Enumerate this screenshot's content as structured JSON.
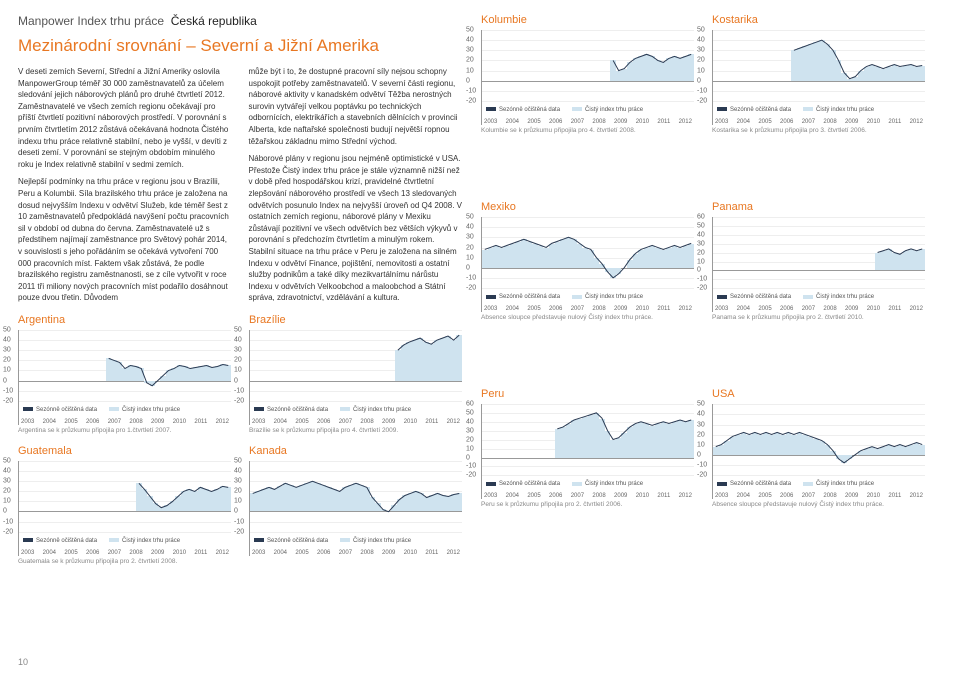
{
  "breadcrumb": {
    "section": "Manpower Index trhu práce",
    "country": "Česká republika"
  },
  "heading": "Mezinárodní srovnání – Severní a Jižní Amerika",
  "paragraph1": "V deseti zemích Severní, Střední a Jižní Ameriky oslovila ManpowerGroup téměř 30 000 zaměstnavatelů za účelem sledování jejich náborových plánů pro druhé čtvrtletí 2012. Zaměstnavatelé ve všech zemích regionu očekávají pro příští čtvrtletí pozitivní náborových prostředí. V porovnání s prvním čtvrtletím 2012 zůstává očekávaná hodnota Čistého indexu trhu práce relativně stabilní, nebo je vyšší, v devíti z deseti zemí. V porovnání se stejným obdobím minulého roku je Index relativně stabilní v sedmi zemích.",
  "paragraph2": "Nejlepší podmínky na trhu práce v regionu jsou v Brazílii, Peru a Kolumbii. Síla brazilského trhu práce je založena na dosud nejvyšším Indexu v odvětví Služeb, kde téměř šest z 10 zaměstnavatelů předpokládá navýšení počtu pracovních sil v období od dubna do června. Zaměstnavatelé už s předstihem najímají zaměstnance pro Světový pohár 2014, v souvislosti s jeho pořádáním se očekává vytvoření 700 000 pracovních míst. Faktem však zůstává, že podle brazilského registru zaměstnanosti, se z cíle vytvořit v roce 2011 tři miliony nových pracovních míst podařilo dosáhnout pouze dvou třetin. Důvodem",
  "paragraph3": "může být i to, že dostupné pracovní síly nejsou schopny uspokojit potřeby zaměstnavatelů. V severní části regionu, náborové aktivity v kanadském odvětví Těžba nerostných surovin vytvářejí velkou poptávku po technických odbornících, elektrikářích a stavebních dělnících v provincii Alberta, kde naftařské společnosti budují největší ropnou těžařskou základnu mimo Střední východ.",
  "paragraph4": "Náborové plány v regionu jsou nejméně optimistické v USA. Přestože Čistý index trhu práce je stále významně nižší než v době před hospodářskou krizí, pravidelné čtvrtletní zlepšování náborového prostředí ve všech 13 sledovaných odvětvích posunulo Index na nejvyšší úroveň od Q4 2008. V ostatních zemích regionu, náborové plány v Mexiku zůstávají pozitivní ve všech odvětvích bez větších výkyvů v porovnání s předchozím čtvrtletím a minulým rokem. Stabilní situace na trhu práce v Peru je založena na silném Indexu v odvětví Finance, pojištění, nemovitosti a ostatní služby podnikům a také díky mezikvartálnímu nárůstu Indexu v odvětvích Velkoobchod a maloobchod a Státní správa, zdravotnictví, vzdělávání a kultura.",
  "legend_labels": {
    "seasonal": "Sezónně očištěná data",
    "net": "Čistý index trhu práce"
  },
  "colors": {
    "accent": "#e87722",
    "bar": "#cfe3ef",
    "line": "#2a3a52",
    "grid": "#eeeeee",
    "axis": "#999999"
  },
  "axis": {
    "min": -20,
    "max": 50,
    "step": 10
  },
  "x_ticks": [
    "2003",
    "2004",
    "2005",
    "2006",
    "2007",
    "2008",
    "2009",
    "2010",
    "2011",
    "2012"
  ],
  "charts_left": [
    {
      "title": "Argentina",
      "footnote": "Argentina se k průzkumu připojila pro 1.čtvrtletí 2007.",
      "values": [
        null,
        null,
        null,
        null,
        null,
        null,
        null,
        null,
        null,
        null,
        null,
        null,
        null,
        null,
        null,
        null,
        22,
        20,
        18,
        12,
        15,
        14,
        12,
        -2,
        -5,
        0,
        5,
        10,
        12,
        15,
        14,
        12,
        13,
        14,
        15,
        13,
        14,
        16,
        15
      ],
      "line": [
        22,
        20,
        18,
        12,
        15,
        14,
        12,
        -2,
        -5,
        0,
        5,
        10,
        12,
        15,
        14,
        12,
        13,
        14,
        15,
        13,
        14,
        16,
        15
      ]
    },
    {
      "title": "Brazílie",
      "footnote": "Brazílie se k průzkumu připojila pro 4. čtvrtletí 2009.",
      "values": [
        null,
        null,
        null,
        null,
        null,
        null,
        null,
        null,
        null,
        null,
        null,
        null,
        null,
        null,
        null,
        null,
        null,
        null,
        null,
        null,
        null,
        null,
        null,
        null,
        null,
        null,
        30,
        35,
        38,
        40,
        42,
        38,
        36,
        40,
        42,
        44,
        40,
        45
      ],
      "line": [
        30,
        35,
        38,
        40,
        42,
        38,
        36,
        40,
        42,
        44,
        40,
        45
      ]
    },
    {
      "title": "Guatemala",
      "footnote": "Guatemala se k průzkumu připojila pro 2. čtvrtletí 2008.",
      "values": [
        null,
        null,
        null,
        null,
        null,
        null,
        null,
        null,
        null,
        null,
        null,
        null,
        null,
        null,
        null,
        null,
        null,
        null,
        null,
        null,
        null,
        28,
        22,
        15,
        8,
        4,
        6,
        10,
        15,
        20,
        22,
        20,
        24,
        22,
        20,
        22,
        25,
        24
      ],
      "line": [
        28,
        22,
        15,
        8,
        4,
        6,
        10,
        15,
        20,
        22,
        20,
        24,
        22,
        20,
        22,
        25,
        24
      ]
    },
    {
      "title": "Kanada",
      "footnote": "",
      "values": [
        18,
        20,
        22,
        24,
        22,
        25,
        28,
        26,
        24,
        26,
        28,
        30,
        28,
        26,
        24,
        22,
        20,
        24,
        26,
        28,
        26,
        24,
        14,
        8,
        2,
        0,
        6,
        12,
        16,
        18,
        20,
        18,
        14,
        16,
        18,
        16,
        15,
        17,
        18
      ],
      "line": [
        18,
        20,
        22,
        24,
        22,
        25,
        28,
        26,
        24,
        26,
        28,
        30,
        28,
        26,
        24,
        22,
        20,
        24,
        26,
        28,
        26,
        24,
        14,
        8,
        2,
        0,
        6,
        12,
        16,
        18,
        20,
        18,
        14,
        16,
        18,
        16,
        15,
        17,
        18
      ]
    }
  ],
  "charts_right": [
    {
      "title": "Kolumbie",
      "footnote": "Kolumbie se k průzkumu připojila pro 4. čtvrtletí 2008.",
      "values": [
        null,
        null,
        null,
        null,
        null,
        null,
        null,
        null,
        null,
        null,
        null,
        null,
        null,
        null,
        null,
        null,
        null,
        null,
        null,
        null,
        null,
        null,
        null,
        20,
        10,
        12,
        18,
        22,
        24,
        26,
        24,
        20,
        18,
        22,
        24,
        22,
        24,
        26
      ],
      "line": [
        20,
        10,
        12,
        18,
        22,
        24,
        26,
        24,
        20,
        18,
        22,
        24,
        22,
        24,
        26
      ]
    },
    {
      "title": "Kostarika",
      "footnote": "Kostarika se k průzkumu připojila pro 3. čtvrtletí 2006.",
      "values": [
        null,
        null,
        null,
        null,
        null,
        null,
        null,
        null,
        null,
        null,
        null,
        null,
        null,
        null,
        30,
        32,
        34,
        36,
        38,
        40,
        36,
        30,
        20,
        8,
        2,
        4,
        10,
        14,
        16,
        14,
        12,
        14,
        16,
        14,
        15,
        16,
        14,
        15
      ],
      "line": [
        30,
        32,
        34,
        36,
        38,
        40,
        36,
        30,
        20,
        8,
        2,
        4,
        10,
        14,
        16,
        14,
        12,
        14,
        16,
        14,
        15,
        16,
        14,
        15
      ]
    },
    {
      "title": "Mexiko",
      "footnote": "Absence sloupce představuje nulový Čistý index trhu práce.",
      "values": [
        18,
        20,
        22,
        20,
        22,
        24,
        26,
        28,
        26,
        24,
        22,
        20,
        24,
        26,
        28,
        30,
        28,
        24,
        20,
        18,
        10,
        4,
        -4,
        -10,
        -6,
        0,
        8,
        14,
        18,
        20,
        22,
        20,
        18,
        20,
        22,
        20,
        22,
        24
      ],
      "line": [
        18,
        20,
        22,
        20,
        22,
        24,
        26,
        28,
        26,
        24,
        22,
        20,
        24,
        26,
        28,
        30,
        28,
        24,
        20,
        18,
        10,
        4,
        -4,
        -10,
        -6,
        0,
        8,
        14,
        18,
        20,
        22,
        20,
        18,
        20,
        22,
        20,
        22,
        24
      ]
    },
    {
      "title": "Panama",
      "footnote": "Panama se k průzkumu připojila pro 2. čtvrtletí 2010.",
      "axis_max": 60,
      "values": [
        null,
        null,
        null,
        null,
        null,
        null,
        null,
        null,
        null,
        null,
        null,
        null,
        null,
        null,
        null,
        null,
        null,
        null,
        null,
        null,
        null,
        null,
        null,
        null,
        null,
        null,
        null,
        null,
        null,
        20,
        22,
        24,
        20,
        18,
        22,
        24,
        22,
        24
      ],
      "line": [
        20,
        22,
        24,
        20,
        18,
        22,
        24,
        22,
        24
      ]
    },
    {
      "title": "Peru",
      "footnote": "Peru se k průzkumu připojila pro 2. čtvrtletí 2006.",
      "axis_max": 60,
      "values": [
        null,
        null,
        null,
        null,
        null,
        null,
        null,
        null,
        null,
        null,
        null,
        null,
        null,
        32,
        34,
        38,
        42,
        44,
        46,
        48,
        50,
        44,
        30,
        20,
        22,
        28,
        34,
        38,
        40,
        38,
        36,
        38,
        40,
        38,
        40,
        42,
        40,
        42
      ],
      "line": [
        32,
        34,
        38,
        42,
        44,
        46,
        48,
        50,
        44,
        30,
        20,
        22,
        28,
        34,
        38,
        40,
        38,
        36,
        38,
        40,
        38,
        40,
        42,
        40,
        42
      ]
    },
    {
      "title": "USA",
      "footnote": "Absence sloupce představuje nulový Čistý index trhu práce.",
      "values": [
        8,
        10,
        14,
        18,
        20,
        22,
        20,
        22,
        20,
        22,
        20,
        22,
        20,
        22,
        20,
        22,
        20,
        18,
        16,
        14,
        10,
        4,
        -4,
        -8,
        -4,
        0,
        4,
        6,
        8,
        6,
        8,
        10,
        8,
        10,
        8,
        10,
        12,
        10
      ],
      "line": [
        8,
        10,
        14,
        18,
        20,
        22,
        20,
        22,
        20,
        22,
        20,
        22,
        20,
        22,
        20,
        22,
        20,
        18,
        16,
        14,
        10,
        4,
        -4,
        -8,
        -4,
        0,
        4,
        6,
        8,
        6,
        8,
        10,
        8,
        10,
        8,
        10,
        12,
        10
      ]
    }
  ],
  "page_number": "10"
}
